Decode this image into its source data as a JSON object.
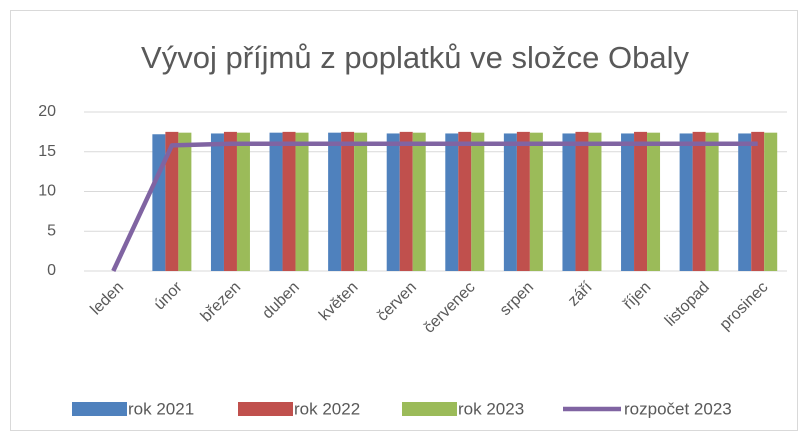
{
  "chart_data": {
    "type": "bar",
    "title": "Vývoj příjmů z poplatků ve složce Obaly",
    "categories": [
      "leden",
      "únor",
      "březen",
      "duben",
      "květen",
      "červen",
      "červenec",
      "srpen",
      "září",
      "říjen",
      "listopad",
      "prosinec"
    ],
    "series": [
      {
        "name": "rok 2021",
        "color": "#4f81bd",
        "values": [
          null,
          17.2,
          17.3,
          17.4,
          17.4,
          17.3,
          17.3,
          17.3,
          17.3,
          17.3,
          17.3,
          17.3
        ]
      },
      {
        "name": "rok 2022",
        "color": "#c0504d",
        "values": [
          null,
          17.5,
          17.5,
          17.5,
          17.5,
          17.5,
          17.5,
          17.5,
          17.5,
          17.5,
          17.5,
          17.5
        ]
      },
      {
        "name": "rok 2023",
        "color": "#9bbb59",
        "values": [
          null,
          17.4,
          17.4,
          17.4,
          17.4,
          17.4,
          17.4,
          17.4,
          17.4,
          17.4,
          17.4,
          17.4
        ]
      },
      {
        "name": "rozpočet 2023",
        "color": "#8064a2",
        "type": "line",
        "values": [
          0,
          15.8,
          16,
          16,
          16,
          16,
          16,
          16,
          16,
          16,
          16,
          16
        ]
      }
    ],
    "ylim": [
      0,
      20
    ],
    "yticks": [
      0,
      5,
      10,
      15,
      20
    ],
    "grid": true,
    "legend": "bottom"
  }
}
